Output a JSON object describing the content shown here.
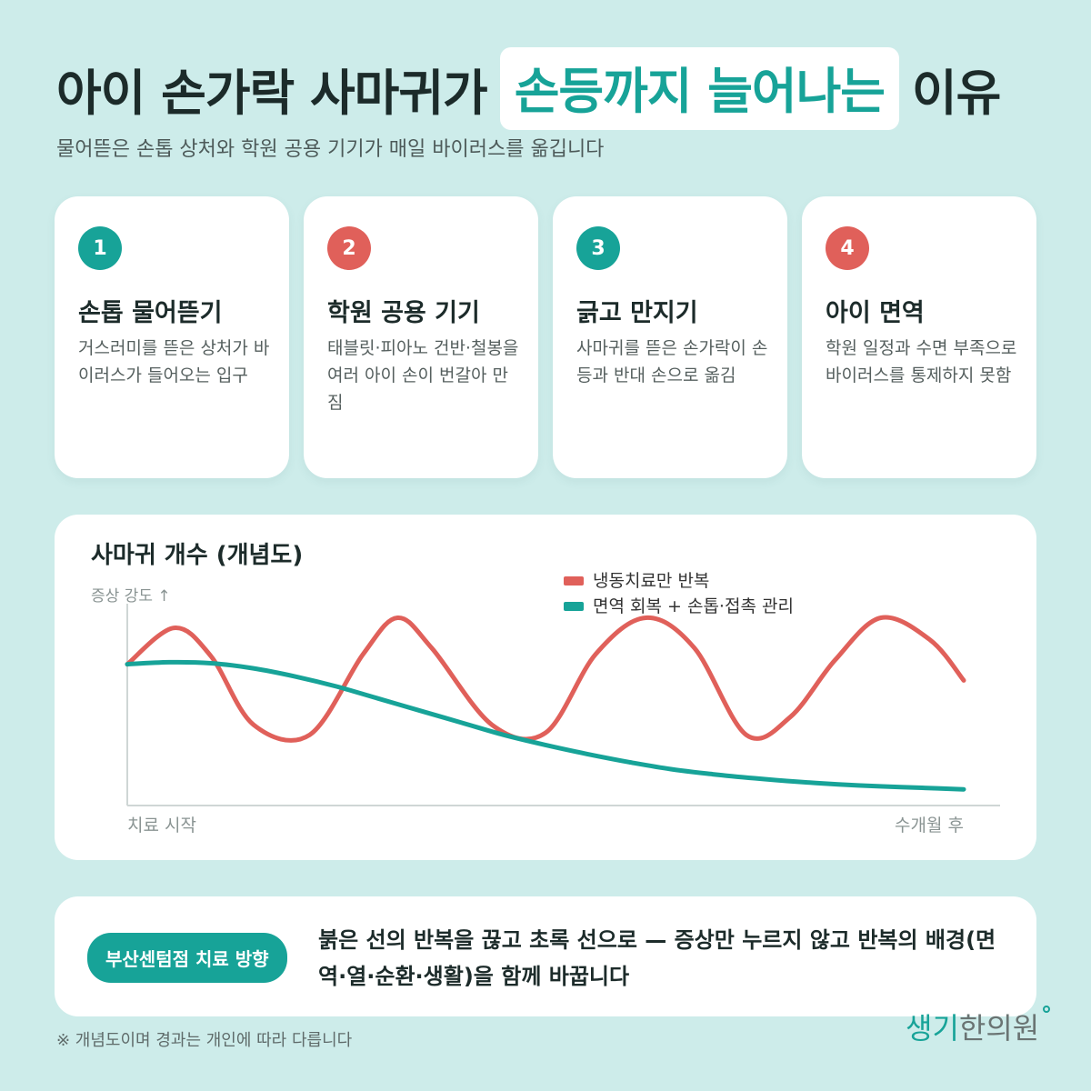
{
  "header": {
    "title_prefix": "아이 손가락 사마귀가",
    "title_highlight": "손등까지 늘어나는",
    "title_suffix": "이유",
    "subtitle": "물어뜯은 손톱 상처와 학원 공용 기기가 매일 바이러스를 옮깁니다"
  },
  "colors": {
    "teal": "#17a398",
    "red": "#e0605a",
    "background": "#cdecea"
  },
  "cards": [
    {
      "num": "1",
      "color": "#17a398",
      "title": "손톱 물어뜯기",
      "desc": "거스러미를 뜯은 상처가 바이러스가 들어오는 입구"
    },
    {
      "num": "2",
      "color": "#e0605a",
      "title": "학원 공용 기기",
      "desc": "태블릿·피아노 건반·철봉을 여러 아이 손이 번갈아 만짐"
    },
    {
      "num": "3",
      "color": "#17a398",
      "title": "긁고 만지기",
      "desc": "사마귀를 뜯은 손가락이 손등과 반대 손으로 옮김"
    },
    {
      "num": "4",
      "color": "#e0605a",
      "title": "아이 면역",
      "desc": "학원 일정과 수면 부족으로 바이러스를 통제하지 못함"
    }
  ],
  "chart_data": {
    "type": "line",
    "title": "사마귀 개수 (개념도)",
    "ylabel": "증상 강도 ↑",
    "x_start_label": "치료 시작",
    "x_end_label": "수개월 후",
    "grid": false,
    "legend_position": "top-right",
    "ylim": [
      0,
      100
    ],
    "series": [
      {
        "name": "냉동치료만 반복",
        "color": "#e0605a",
        "x": [
          0,
          0.056,
          0.1,
          0.151,
          0.218,
          0.282,
          0.323,
          0.364,
          0.436,
          0.5,
          0.56,
          0.62,
          0.678,
          0.74,
          0.793,
          0.846,
          0.901,
          0.96,
          1.0
        ],
        "values": [
          70,
          88,
          74,
          40,
          35,
          75,
          93,
          78,
          40,
          36,
          75,
          93,
          78,
          35,
          44,
          72,
          93,
          82,
          62
        ]
      },
      {
        "name": "면역 회복 + 손톱·접촉 관리",
        "color": "#17a398",
        "x": [
          0,
          0.05,
          0.1,
          0.15,
          0.2,
          0.25,
          0.3,
          0.35,
          0.4,
          0.45,
          0.5,
          0.55,
          0.6,
          0.65,
          0.7,
          0.75,
          0.8,
          0.85,
          0.9,
          0.95,
          1.0
        ],
        "values": [
          70,
          71,
          70.5,
          68,
          64,
          59,
          53,
          47,
          41,
          35,
          30,
          25.5,
          21.5,
          18,
          15.5,
          13.5,
          11.8,
          10.5,
          9.5,
          8.8,
          8
        ]
      }
    ]
  },
  "bottom": {
    "badge": "부산센텀점 치료 방향",
    "text": "붉은 선의 반복을 끊고 초록 선으로 — 증상만 누르지 않고 반복의 배경(면역·열·순환·생활)을 함께 바꿉니다"
  },
  "footnote": "※ 개념도이며 경과는 개인에 따라 다릅니다",
  "logo": {
    "part1": "생기",
    "part2": "한의원"
  }
}
